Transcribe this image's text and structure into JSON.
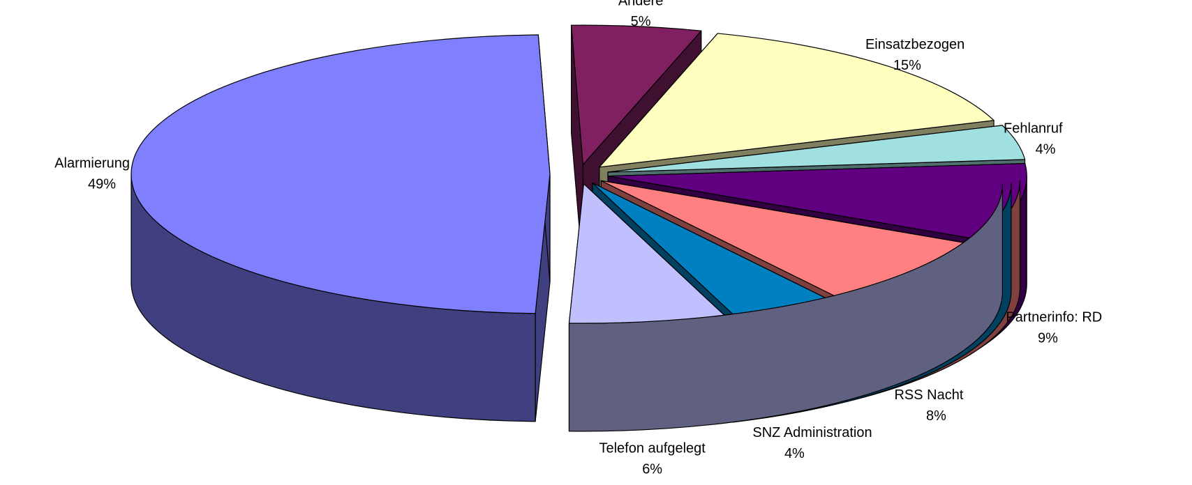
{
  "chart_data": {
    "type": "pie",
    "categories": [
      "Alarmierung",
      "Andere",
      "Einsatzbezogen",
      "Fehlanruf",
      "Partnerinfo: RD",
      "RSS Nacht",
      "SNZ Administration",
      "Telefon aufgelegt"
    ],
    "values": [
      49,
      5,
      15,
      4,
      9,
      8,
      4,
      6
    ],
    "value_labels": [
      "49%",
      "5%",
      "15%",
      "4%",
      "9%",
      "8%",
      "4%",
      "6%"
    ],
    "colors": [
      "#8080ff",
      "#802060",
      "#ffffc0",
      "#a0e0e0",
      "#600080",
      "#ff8080",
      "#0080c0",
      "#c0c0ff"
    ]
  }
}
